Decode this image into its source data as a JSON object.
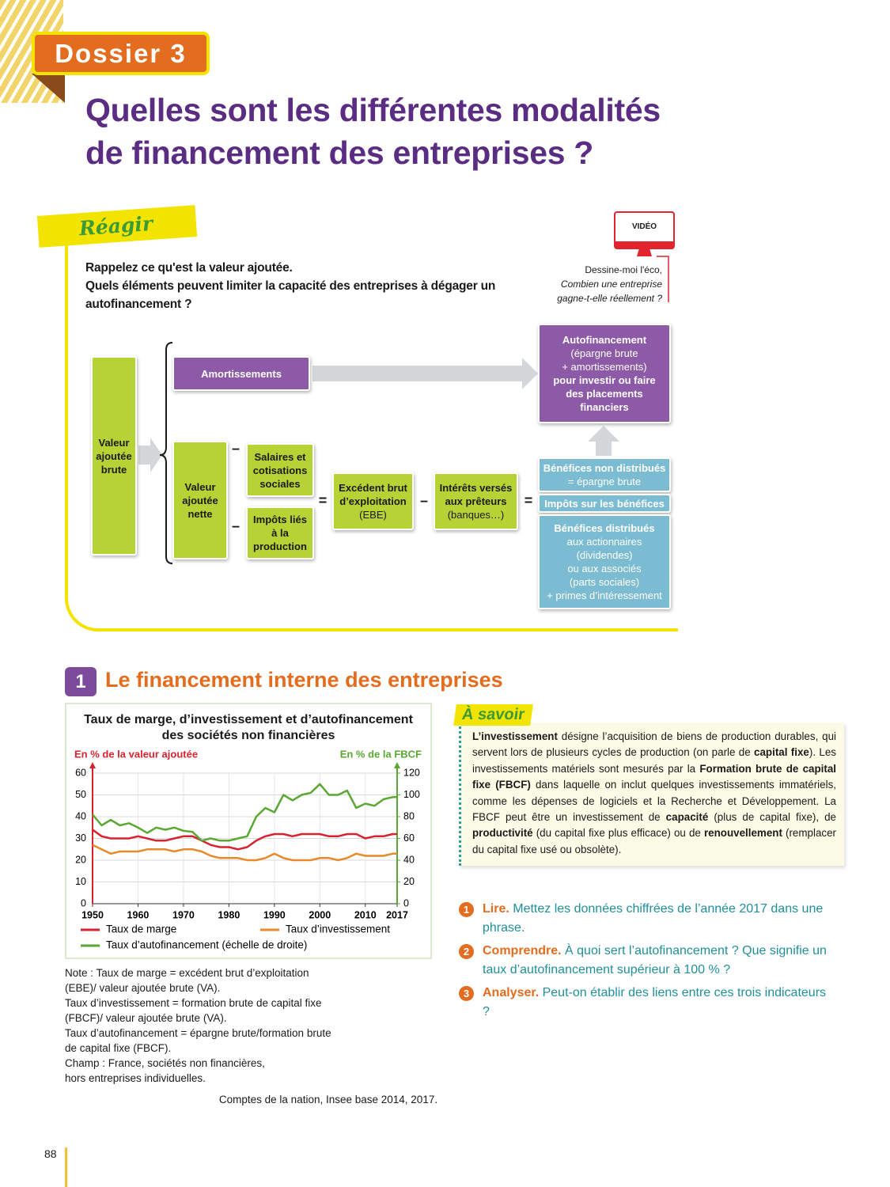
{
  "header": {
    "badge": "Dossier 3",
    "title": [
      "Quelles sont les différentes modalités",
      "de financement des entreprises ?"
    ]
  },
  "reagir": {
    "label": "Réagir",
    "questions": [
      "Rappelez ce qu'est la valeur ajoutée.",
      "Quels éléments peuvent limiter la capacité des entreprises à dégager un autofinancement ?"
    ],
    "video": {
      "label": "VIDÉO",
      "source": "Dessine-moi l'éco,",
      "title": "Combien une entreprise gagne-t-elle réellement ?"
    }
  },
  "diagram": {
    "nodes": [
      {
        "lines": [
          "Valeur",
          "ajoutée",
          "brute"
        ]
      },
      {
        "lines": [
          "Amortissements"
        ]
      },
      {
        "lines": [
          "Valeur",
          "ajoutée",
          "nette"
        ]
      },
      {
        "lines": [
          "Salaires et",
          "cotisations",
          "sociales"
        ]
      },
      {
        "lines": [
          "Impôts liés",
          "à la",
          "production"
        ]
      },
      {
        "lines": [
          "Excédent brut",
          "d’exploitation",
          "(EBE)"
        ]
      },
      {
        "lines": [
          "Intérêts versés",
          "aux prêteurs",
          "(banques…)"
        ]
      },
      {
        "lines": [
          "Bénéfices non distribués",
          "= épargne brute"
        ]
      },
      {
        "lines": [
          "Impôts sur les bénéfices"
        ]
      },
      {
        "lines": [
          "Bénéfices distribués",
          "aux actionnaires",
          "(dividendes)",
          "ou aux associés",
          "(parts sociales)",
          "+ primes d’intéressement"
        ]
      },
      {
        "lines": [
          "Autofinancement",
          "(épargne brute",
          "+ amortissements)",
          "pour investir ou faire",
          "des placements",
          "financiers"
        ]
      }
    ],
    "operators": [
      "–",
      "–",
      "=",
      "–",
      "="
    ]
  },
  "section": {
    "number": "1",
    "title": "Le financement interne des entreprises"
  },
  "chart_data": {
    "type": "line",
    "title": "Taux de marge, d’investissement et d’autofinancement des sociétés non financières",
    "ylabel": "En % de la valeur ajoutée",
    "y2label": "En % de la FBCF",
    "x": [
      1950,
      1952,
      1954,
      1956,
      1958,
      1960,
      1962,
      1964,
      1966,
      1968,
      1970,
      1972,
      1974,
      1976,
      1978,
      1980,
      1982,
      1984,
      1986,
      1988,
      1990,
      1992,
      1994,
      1996,
      1998,
      2000,
      2002,
      2004,
      2006,
      2008,
      2010,
      2012,
      2014,
      2016,
      2017
    ],
    "series": [
      {
        "name": "Taux de marge",
        "color": "#d7232f",
        "values": [
          34,
          31,
          30,
          30,
          30,
          31,
          30,
          29,
          29,
          30,
          31,
          31,
          29,
          27,
          26,
          26,
          25,
          26,
          29,
          31,
          32,
          32,
          31,
          32,
          32,
          32,
          31,
          31,
          32,
          32,
          30,
          31,
          31,
          32,
          32
        ]
      },
      {
        "name": "Taux d’investissement",
        "color": "#e8892a",
        "values": [
          27,
          25,
          23,
          24,
          24,
          24,
          25,
          25,
          25,
          24,
          25,
          25,
          24,
          22,
          21,
          21,
          21,
          20,
          20,
          21,
          23,
          21,
          20,
          20,
          20,
          21,
          21,
          20,
          21,
          23,
          22,
          22,
          22,
          23,
          23
        ]
      },
      {
        "name": "Taux d’autofinancement (échelle de droite)",
        "color": "#5aa832",
        "axis": "y2",
        "values": [
          82,
          72,
          77,
          72,
          74,
          70,
          65,
          70,
          68,
          70,
          67,
          66,
          58,
          60,
          58,
          58,
          60,
          62,
          80,
          88,
          84,
          100,
          95,
          100,
          102,
          110,
          100,
          100,
          104,
          88,
          92,
          90,
          96,
          98,
          98
        ]
      }
    ],
    "xlim": [
      1950,
      2017
    ],
    "xticks": [
      1950,
      1960,
      1970,
      1980,
      1990,
      2000,
      2010,
      2017
    ],
    "ylim": [
      0,
      60
    ],
    "yticks": [
      0,
      10,
      20,
      30,
      40,
      50,
      60
    ],
    "y2lim": [
      0,
      120
    ],
    "y2ticks": [
      0,
      20,
      40,
      60,
      80,
      100,
      120
    ],
    "grid": true,
    "legend": "bottom"
  },
  "note": [
    "Note : Taux de marge = excédent brut d’exploitation",
    "(EBE)/ valeur ajoutée brute (VA).",
    "Taux d’investissement = formation brute de capital fixe",
    "(FBCF)/ valeur ajoutée brute (VA).",
    "Taux d’autofinancement = épargne brute/formation brute",
    "de capital fixe (FBCF).",
    "Champ : France, sociétés non financières,",
    "hors entreprises individuelles."
  ],
  "source": "Comptes de la nation, Insee base 2014, 2017.",
  "a_savoir": {
    "label": "À savoir",
    "text": [
      {
        "text": "L’investissement",
        "bold": true
      },
      {
        "text": " désigne l’acquisition de biens de production durables, qui servent lors de plusieurs cycles de production (on parle de ",
        "bold": false
      },
      {
        "text": "capital fixe",
        "bold": true
      },
      {
        "text": "). Les investissements matériels sont mesurés par la ",
        "bold": false
      },
      {
        "text": "Formation brute de capital fixe (FBCF)",
        "bold": true
      },
      {
        "text": " dans laquelle on inclut quelques investissements immatériels, comme les dépenses de logiciels et la Recherche et Développement. La FBCF peut être un investissement de ",
        "bold": false
      },
      {
        "text": "capacité",
        "bold": true
      },
      {
        "text": " (plus de capital fixe), de ",
        "bold": false
      },
      {
        "text": "productivité",
        "bold": true
      },
      {
        "text": " (du capital fixe plus efficace) ou de ",
        "bold": false
      },
      {
        "text": "renouvellement",
        "bold": true
      },
      {
        "text": " (remplacer du capital fixe usé ou obsolète).",
        "bold": false
      }
    ]
  },
  "questions": [
    {
      "number": "1",
      "verb": "Lire.",
      "text": "Mettez les données chiffrées de l’année 2017 dans une phrase."
    },
    {
      "number": "2",
      "verb": "Comprendre.",
      "text": "À quoi sert l’autofinancement ? Que signifie un taux d’autofinancement supérieur à 100 % ?"
    },
    {
      "number": "3",
      "verb": "Analyser.",
      "text": "Peut-on établir des liens entre ces trois indicateurs ?"
    }
  ],
  "page_number": "88"
}
